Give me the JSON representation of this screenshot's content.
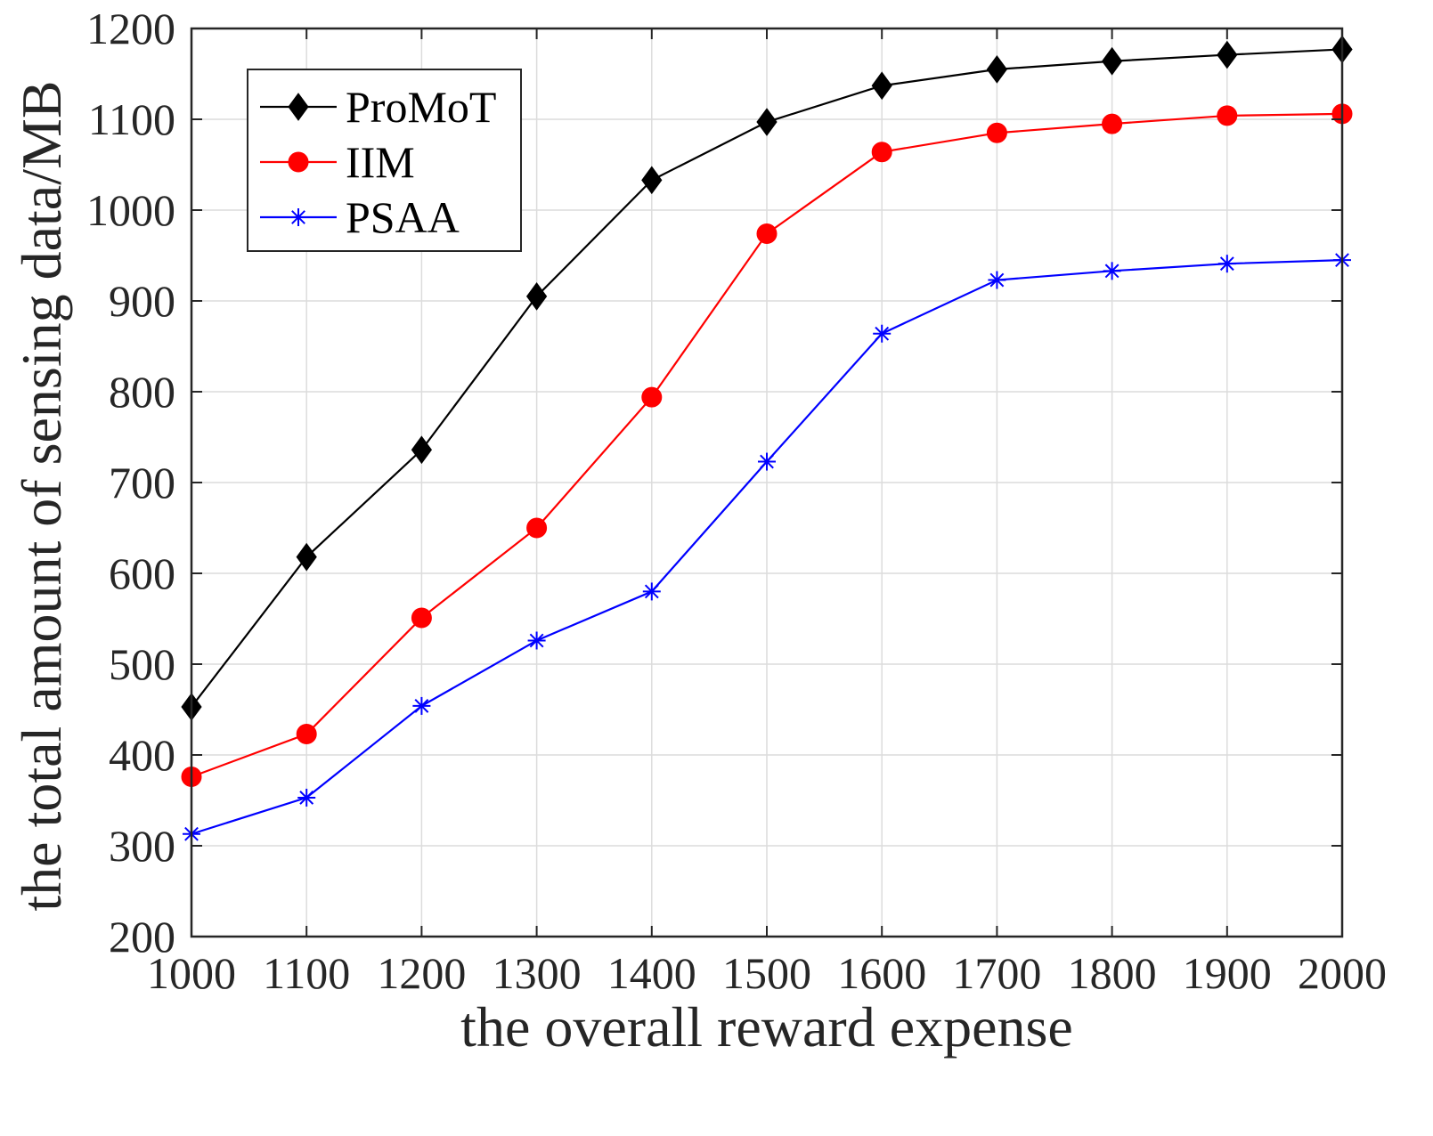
{
  "chart_data": {
    "type": "line",
    "title": "",
    "xlabel": "the overall reward expense",
    "ylabel": "the total amount of sensing data/MB",
    "xlim": [
      1000,
      2000
    ],
    "ylim": [
      200,
      1200
    ],
    "xticks": [
      1000,
      1100,
      1200,
      1300,
      1400,
      1500,
      1600,
      1700,
      1800,
      1900,
      2000
    ],
    "yticks": [
      200,
      300,
      400,
      500,
      600,
      700,
      800,
      900,
      1000,
      1100,
      1200
    ],
    "grid": true,
    "legend_position": "top-left",
    "x": [
      1000,
      1100,
      1200,
      1300,
      1400,
      1500,
      1600,
      1700,
      1800,
      1900,
      2000
    ],
    "series": [
      {
        "name": "ProMoT",
        "color": "#000000",
        "marker": "diamond",
        "values": [
          453,
          618,
          736,
          905,
          1033,
          1097,
          1137,
          1155,
          1164,
          1171,
          1177
        ]
      },
      {
        "name": "IIM",
        "color": "#ff0000",
        "marker": "circle",
        "values": [
          376,
          423,
          551,
          650,
          794,
          974,
          1064,
          1085,
          1095,
          1104,
          1106
        ]
      },
      {
        "name": "PSAA",
        "color": "#0000ff",
        "marker": "asterisk",
        "values": [
          313,
          353,
          454,
          526,
          580,
          723,
          864,
          923,
          933,
          941,
          945
        ]
      }
    ]
  }
}
